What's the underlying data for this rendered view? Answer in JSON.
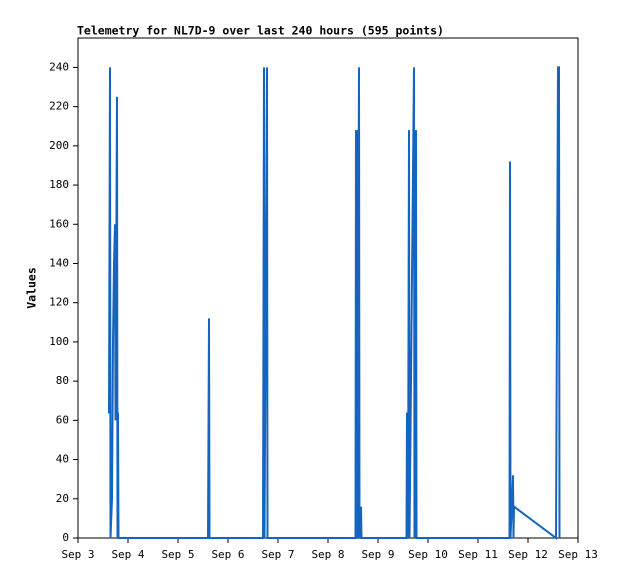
{
  "chart_data": {
    "type": "line",
    "title": "Telemetry for NL7D-9 over last 240 hours (595 points)",
    "y_label": "Values",
    "xlim": [
      3,
      13
    ],
    "xticks": [
      {
        "value": 3,
        "label": "Sep 3"
      },
      {
        "value": 4,
        "label": "Sep 4"
      },
      {
        "value": 5,
        "label": "Sep 5"
      },
      {
        "value": 6,
        "label": "Sep 6"
      },
      {
        "value": 7,
        "label": "Sep 7"
      },
      {
        "value": 8,
        "label": "Sep 8"
      },
      {
        "value": 9,
        "label": "Sep 9"
      },
      {
        "value": 10,
        "label": "Sep 10"
      },
      {
        "value": 11,
        "label": "Sep 11"
      },
      {
        "value": 12,
        "label": "Sep 12"
      },
      {
        "value": 13,
        "label": "Sep 13"
      }
    ],
    "ylim": [
      0,
      255
    ],
    "yticks": [
      0,
      20,
      40,
      60,
      80,
      100,
      120,
      140,
      160,
      180,
      200,
      220,
      240
    ],
    "grid": false,
    "color": "#1565c0",
    "x": [
      3.6,
      3.62,
      3.64,
      3.65,
      3.68,
      3.7,
      3.72,
      3.74,
      3.75,
      3.78,
      3.79,
      3.8,
      3.81,
      5.6,
      5.62,
      5.63,
      6.7,
      6.72,
      6.73,
      6.78,
      6.79,
      8.55,
      8.56,
      8.57,
      8.58,
      8.59,
      8.62,
      8.63,
      8.64,
      8.66,
      8.67,
      9.57,
      9.58,
      9.6,
      9.62,
      9.63,
      9.72,
      9.73,
      9.76,
      9.77,
      11.63,
      11.64,
      11.65,
      11.7,
      11.71,
      11.72,
      12.56,
      12.6,
      12.62,
      12.63
    ],
    "values": [
      64,
      64,
      240,
      0,
      20,
      100,
      140,
      160,
      60,
      225,
      0,
      64,
      0,
      0,
      112,
      0,
      0,
      240,
      0,
      240,
      0,
      0,
      208,
      0,
      208,
      0,
      240,
      0,
      8,
      16,
      0,
      0,
      64,
      0,
      208,
      0,
      240,
      0,
      208,
      0,
      0,
      192,
      0,
      32,
      0,
      16,
      0,
      240,
      240,
      0
    ]
  }
}
